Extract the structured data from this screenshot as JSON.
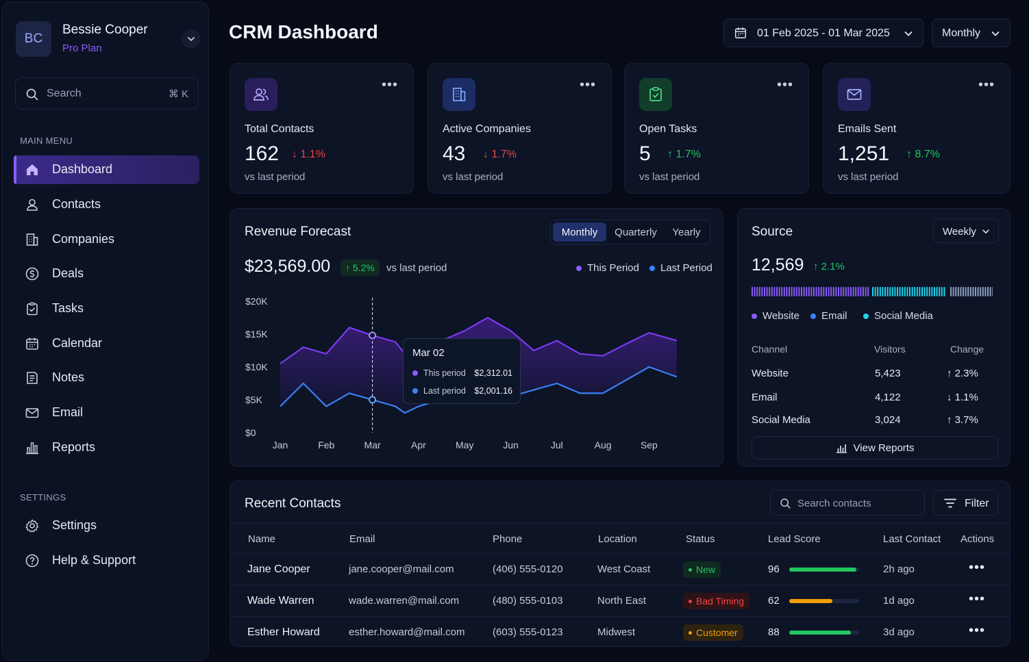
{
  "profile": {
    "initials": "BC",
    "name": "Bessie Cooper",
    "plan": "Pro Plan"
  },
  "search": {
    "placeholder": "Search",
    "shortcut": "⌘ K"
  },
  "sidebar": {
    "main_label": "MAIN MENU",
    "items": [
      {
        "label": "Dashboard",
        "icon": "home-icon",
        "active": true
      },
      {
        "label": "Contacts",
        "icon": "user-icon"
      },
      {
        "label": "Companies",
        "icon": "building-icon"
      },
      {
        "label": "Deals",
        "icon": "dollar-icon"
      },
      {
        "label": "Tasks",
        "icon": "clipboard-check-icon"
      },
      {
        "label": "Calendar",
        "icon": "calendar-icon"
      },
      {
        "label": "Notes",
        "icon": "notes-icon"
      },
      {
        "label": "Email",
        "icon": "mail-icon"
      },
      {
        "label": "Reports",
        "icon": "bar-chart-icon"
      }
    ],
    "settings_label": "SETTINGS",
    "settings_items": [
      {
        "label": "Settings",
        "icon": "gear-icon"
      },
      {
        "label": "Help & Support",
        "icon": "help-icon"
      }
    ]
  },
  "header": {
    "title": "CRM Dashboard",
    "date_range": "01 Feb 2025 - 01 Mar 2025",
    "period": "Monthly"
  },
  "stats": [
    {
      "label": "Total Contacts",
      "value": "162",
      "change": "1.1%",
      "direction": "down",
      "sub": "vs last period",
      "icon": "contacts-icon",
      "color": "#8b5cf6"
    },
    {
      "label": "Active Companies",
      "value": "43",
      "change": "1.7%",
      "direction": "down",
      "sub": "vs last period",
      "icon": "building-icon",
      "color": "#3b82f6"
    },
    {
      "label": "Open Tasks",
      "value": "5",
      "change": "1.7%",
      "direction": "up",
      "sub": "vs last period",
      "icon": "clipboard-check-icon",
      "color": "#22c55e"
    },
    {
      "label": "Emails Sent",
      "value": "1,251",
      "change": "8.7%",
      "direction": "up",
      "sub": "vs last period",
      "icon": "mail-icon",
      "color": "#6366f1"
    }
  ],
  "revenue": {
    "title": "Revenue Forecast",
    "tabs": [
      "Monthly",
      "Quarterly",
      "Yearly"
    ],
    "active_tab": "Monthly",
    "value": "$23,569.00",
    "change": "5.2%",
    "change_sub": "vs last period",
    "legend": [
      "This Period",
      "Last Period"
    ],
    "tooltip": {
      "title": "Mar 02",
      "rows": [
        {
          "label": "This period",
          "value": "$2,312.01"
        },
        {
          "label": "Last period",
          "value": "$2,001.16"
        }
      ]
    }
  },
  "chart_data": {
    "type": "area",
    "categories": [
      "Jan",
      "Feb",
      "Mar",
      "Apr",
      "May",
      "Jun",
      "Jul",
      "Aug",
      "Sep"
    ],
    "x": [
      0,
      0.5,
      1,
      1.5,
      2,
      2.5,
      2.7,
      3,
      3.5,
      4,
      4.5,
      5,
      5.5,
      6,
      6.5,
      7,
      7.5,
      8,
      8.6
    ],
    "series": [
      {
        "name": "This Period",
        "color": "#7c3aed",
        "values": [
          10500,
          13000,
          12000,
          16000,
          14800,
          13800,
          12000,
          12800,
          14000,
          15500,
          17500,
          15500,
          12500,
          14000,
          12000,
          11700,
          13500,
          15200,
          14000
        ]
      },
      {
        "name": "Last Period",
        "color": "#3b82f6",
        "values": [
          4000,
          7500,
          4000,
          6000,
          5000,
          4000,
          3000,
          4000,
          5000,
          6500,
          7800,
          5500,
          6500,
          7500,
          6000,
          6000,
          8000,
          10000,
          8500
        ]
      }
    ],
    "yticks": [
      "$0",
      "$5K",
      "$10K",
      "$15K",
      "$20K"
    ],
    "ylim": [
      0,
      20000
    ],
    "grid": false,
    "legend": "top-right"
  },
  "source": {
    "title": "Source",
    "period": "Weekly",
    "value": "12,569",
    "change": "2.1%",
    "legend": [
      {
        "label": "Website",
        "color": "#8b5cf6"
      },
      {
        "label": "Email",
        "color": "#3b82f6"
      },
      {
        "label": "Social Media",
        "color": "#22d3ee"
      }
    ],
    "columns": [
      "Channel",
      "Visitors",
      "Change"
    ],
    "rows": [
      {
        "channel": "Website",
        "visitors": "5,423",
        "change": "2.3%",
        "direction": "up"
      },
      {
        "channel": "Email",
        "visitors": "4,122",
        "change": "1.1%",
        "direction": "down"
      },
      {
        "channel": "Social Media",
        "visitors": "3,024",
        "change": "3.7%",
        "direction": "up"
      }
    ],
    "button": "View Reports"
  },
  "contacts": {
    "title": "Recent Contacts",
    "search_placeholder": "Search contacts",
    "filter_label": "Filter",
    "columns": [
      "Name",
      "Email",
      "Phone",
      "Location",
      "Status",
      "Lead Score",
      "Last Contact",
      "Actions"
    ],
    "rows": [
      {
        "name": "Jane Cooper",
        "email": "jane.cooper@mail.com",
        "phone": "(406) 555-0120",
        "location": "West Coast",
        "status": "New",
        "status_color": "#22c55e",
        "score": "96",
        "score_fraction": 0.96,
        "score_color": "#22c55e",
        "last_contact": "2h ago"
      },
      {
        "name": "Wade Warren",
        "email": "wade.warren@mail.com",
        "phone": "(480) 555-0103",
        "location": "North East",
        "status": "Bad Timing",
        "status_color": "#ef4444",
        "score": "62",
        "score_fraction": 0.62,
        "score_color": "#f59e0b",
        "last_contact": "1d ago"
      },
      {
        "name": "Esther Howard",
        "email": "esther.howard@mail.com",
        "phone": "(603) 555-0123",
        "location": "Midwest",
        "status": "Customer",
        "status_color": "#f59e0b",
        "score": "88",
        "score_fraction": 0.88,
        "score_color": "#22c55e",
        "last_contact": "3d ago"
      }
    ]
  }
}
